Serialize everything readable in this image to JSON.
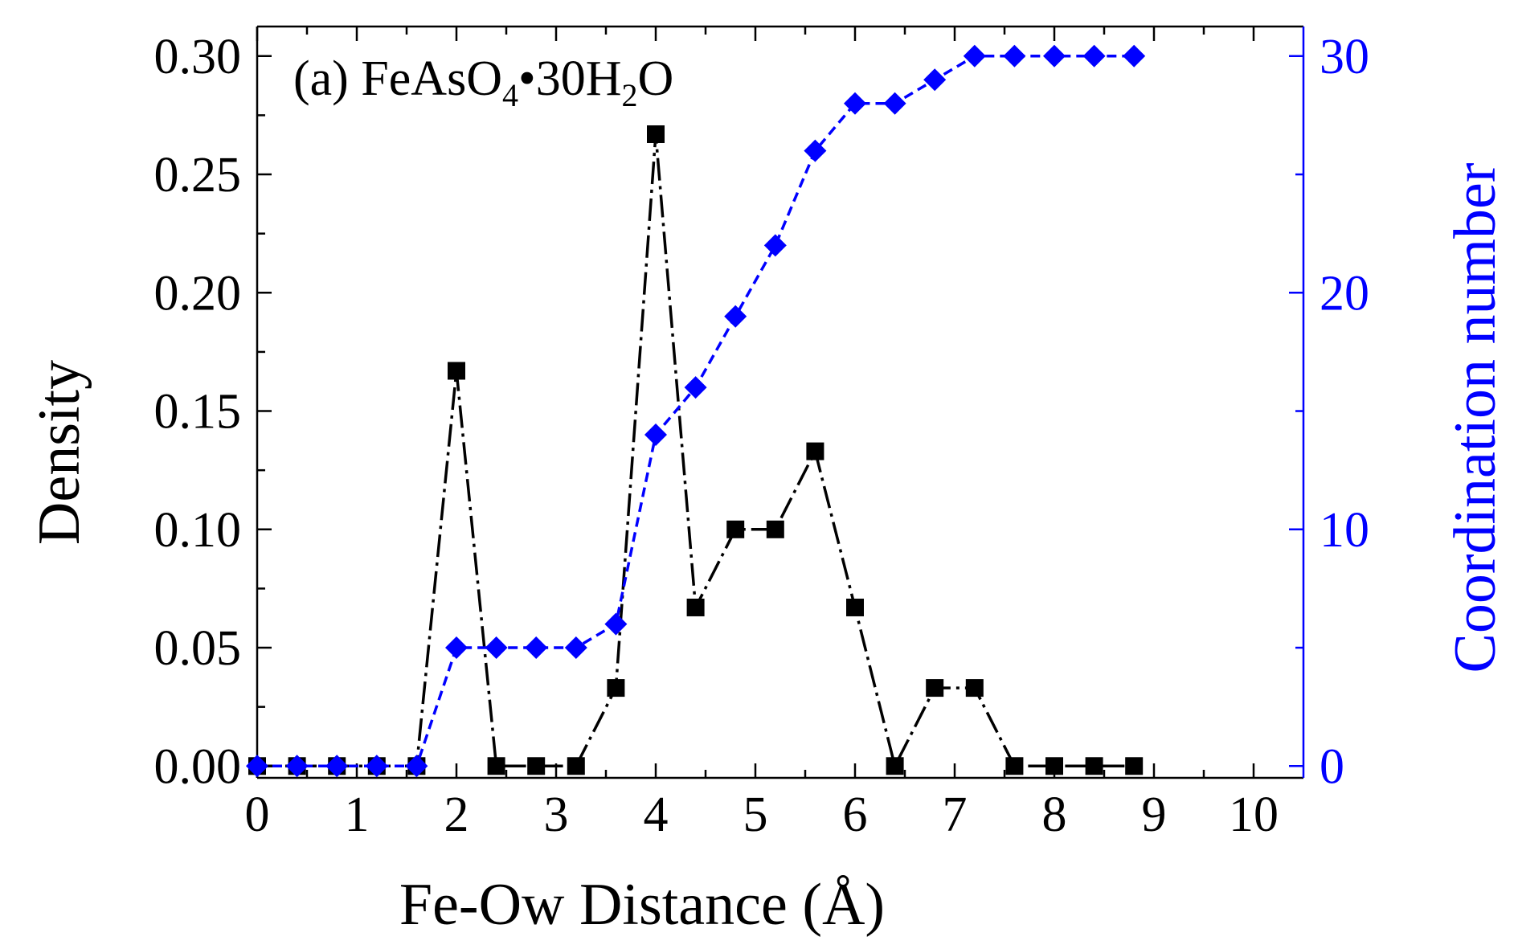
{
  "chart_data": {
    "type": "line",
    "title": "",
    "annotation": {
      "label": "(a) FeAsO",
      "sub1": "4",
      "mid": "•30H",
      "sub2": "2",
      "tail": "O",
      "full": "(a) FeAsO4•30H2O"
    },
    "xlabel": "Fe-Ow Distance (Å)",
    "ylabel": "Density",
    "y2label": "Coordination number",
    "xlim": [
      0,
      10
    ],
    "ylim": [
      0,
      0.3
    ],
    "y2lim": [
      0,
      30
    ],
    "xticks": [
      "0",
      "1",
      "2",
      "3",
      "4",
      "5",
      "6",
      "7",
      "8",
      "9",
      "10"
    ],
    "yticks": [
      "0.00",
      "0.05",
      "0.10",
      "0.15",
      "0.20",
      "0.25",
      "0.30"
    ],
    "y2ticks": [
      "0",
      "10",
      "20",
      "30"
    ],
    "colors": {
      "density": "#000000",
      "coordination": "#0000ff",
      "axis": "#000000",
      "right_axis": "#0000ff"
    },
    "series": [
      {
        "name": "Density",
        "axis": "left",
        "marker": "square",
        "x": [
          0,
          0.4,
          0.8,
          1.2,
          1.6,
          2.0,
          2.4,
          2.8,
          3.2,
          3.6,
          4.0,
          4.4,
          4.8,
          5.2,
          5.6,
          6.0,
          6.4,
          6.8,
          7.2,
          7.6,
          8.0,
          8.4,
          8.8
        ],
        "values": [
          0,
          0,
          0,
          0,
          0,
          0.167,
          0,
          0,
          0,
          0.033,
          0.267,
          0.067,
          0.1,
          0.1,
          0.133,
          0.067,
          0,
          0.033,
          0.033,
          0,
          0,
          0,
          0
        ]
      },
      {
        "name": "Coordination number",
        "axis": "right",
        "marker": "diamond",
        "x": [
          0,
          0.4,
          0.8,
          1.2,
          1.6,
          2.0,
          2.4,
          2.8,
          3.2,
          3.6,
          4.0,
          4.4,
          4.8,
          5.2,
          5.6,
          6.0,
          6.4,
          6.8,
          7.2,
          7.6,
          8.0,
          8.4,
          8.8
        ],
        "values": [
          0,
          0,
          0,
          0,
          0,
          5,
          5,
          5,
          5,
          6,
          14,
          16,
          19,
          22,
          26,
          28,
          28,
          29,
          30,
          30,
          30,
          30,
          30
        ]
      }
    ]
  }
}
